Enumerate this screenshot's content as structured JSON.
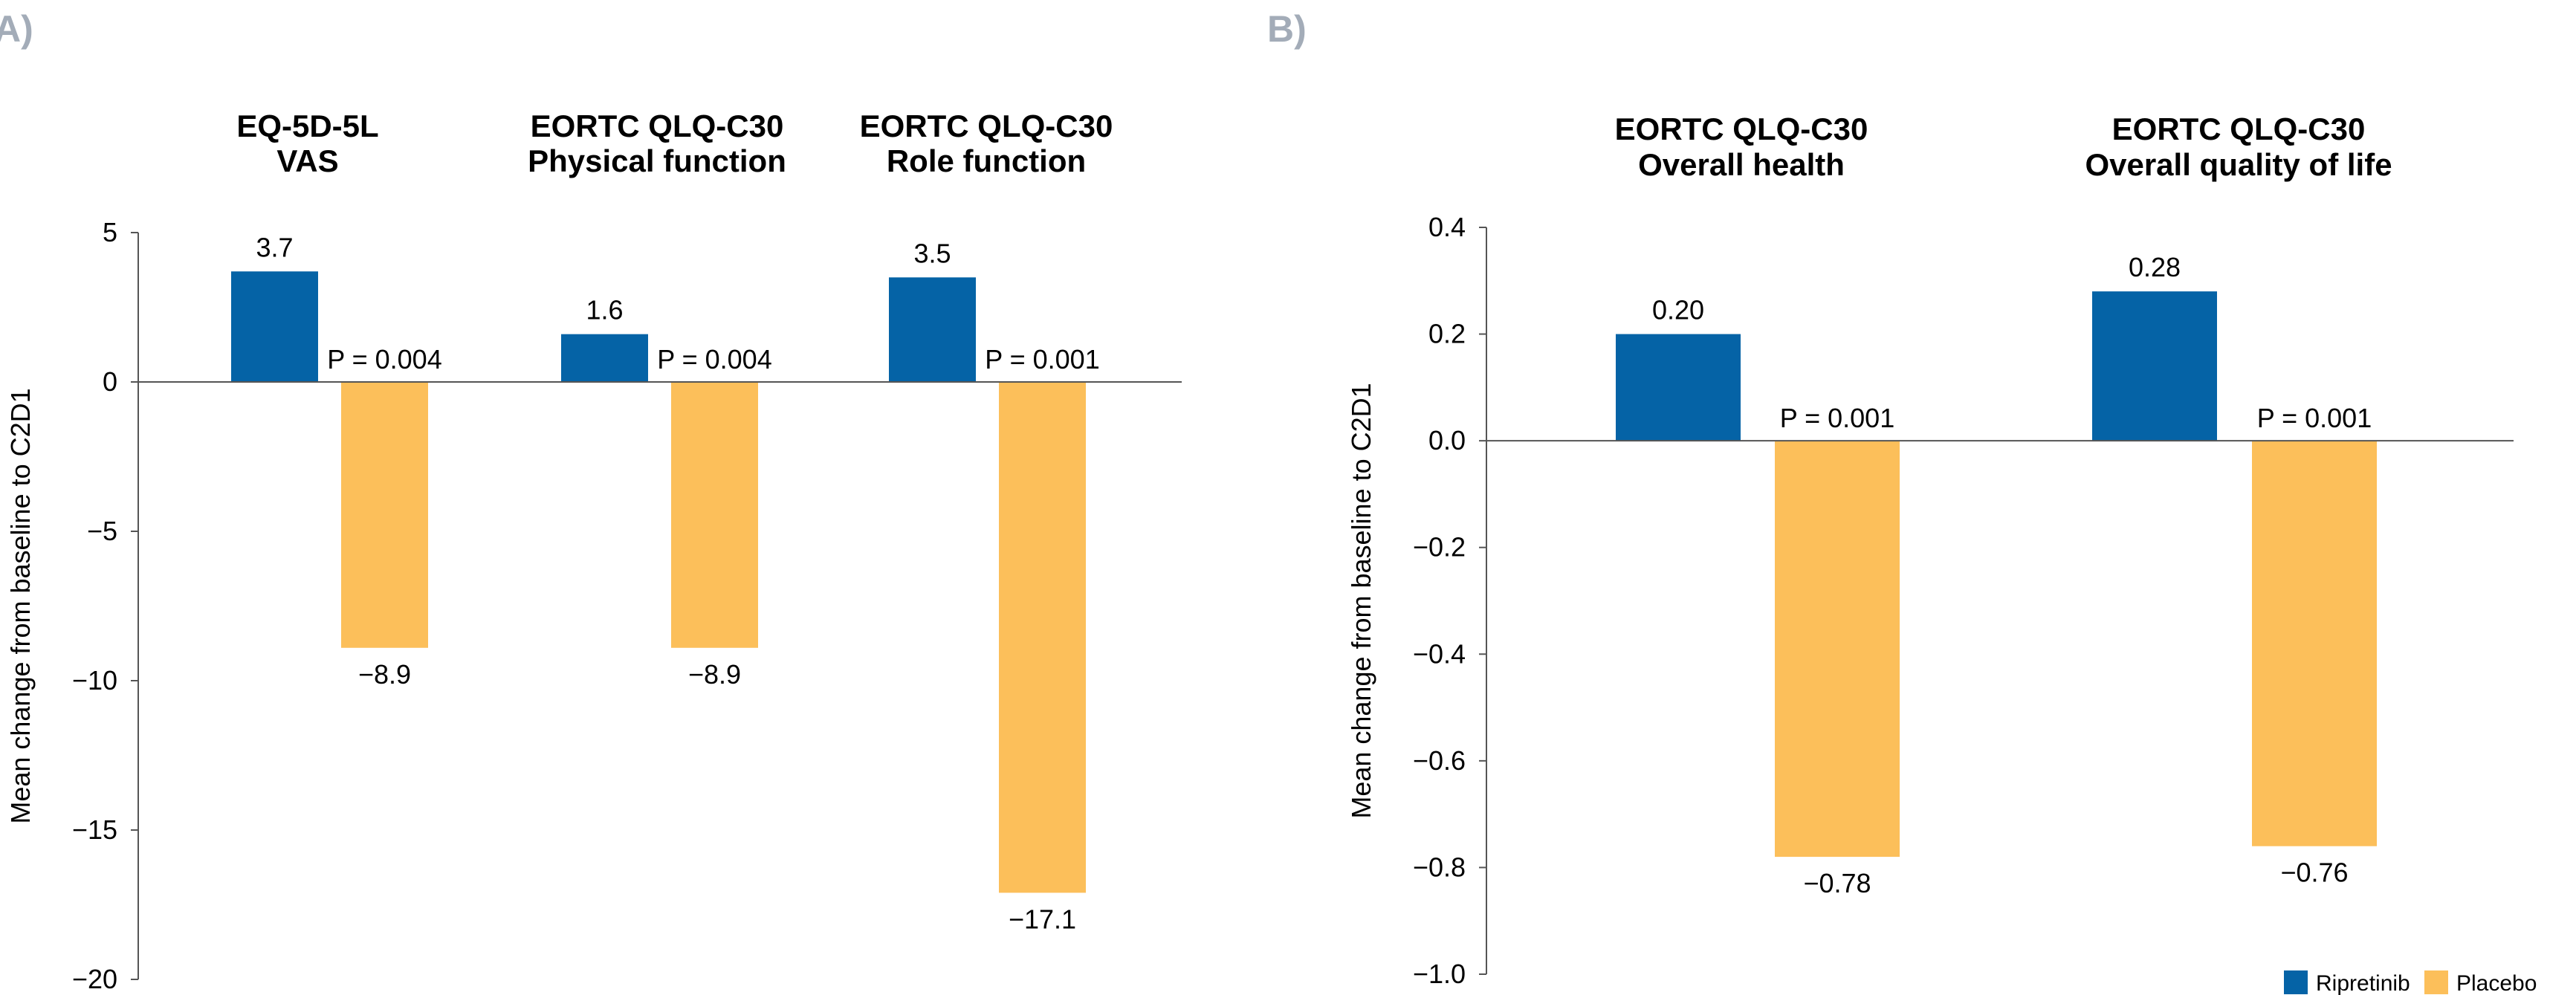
{
  "colors": {
    "ripretinib": "#0563a6",
    "placebo": "#fcbf5a",
    "axis": "#555555",
    "panel_label": "#a3acb8"
  },
  "legend": [
    {
      "name": "Ripretinib",
      "color": "#0563a6"
    },
    {
      "name": "Placebo",
      "color": "#fcbf5a"
    }
  ],
  "chart_data": [
    {
      "panel_label": "A)",
      "type": "bar",
      "ylabel": "Mean change from baseline to C2D1",
      "ylim": [
        -20,
        5
      ],
      "yticks": [
        5,
        0,
        -5,
        -10,
        -15,
        -20
      ],
      "yticklabels": [
        "5",
        "0",
        "−5",
        "−10",
        "−15",
        "−20"
      ],
      "groups": [
        {
          "title_lines": [
            "EQ-5D-5L",
            "VAS"
          ],
          "ripretinib": 3.7,
          "placebo": -8.9,
          "ripretinib_label": "3.7",
          "placebo_label": "−8.9",
          "p_value": "P = 0.004"
        },
        {
          "title_lines": [
            "EORTC QLQ-C30",
            "Physical function"
          ],
          "ripretinib": 1.6,
          "placebo": -8.9,
          "ripretinib_label": "1.6",
          "placebo_label": "−8.9",
          "p_value": "P = 0.004"
        },
        {
          "title_lines": [
            "EORTC QLQ-C30",
            "Role function"
          ],
          "ripretinib": 3.5,
          "placebo": -17.1,
          "ripretinib_label": "3.5",
          "placebo_label": "−17.1",
          "p_value": "P = 0.001"
        }
      ]
    },
    {
      "panel_label": "B)",
      "type": "bar",
      "ylabel": "Mean change from baseline to C2D1",
      "ylim": [
        -1.0,
        0.4
      ],
      "yticks": [
        0.4,
        0.2,
        0.0,
        -0.2,
        -0.4,
        -0.6,
        -0.8,
        -1.0
      ],
      "yticklabels": [
        "0.4",
        "0.2",
        "0.0",
        "−0.2",
        "−0.4",
        "−0.6",
        "−0.8",
        "−1.0"
      ],
      "groups": [
        {
          "title_lines": [
            "EORTC QLQ-C30",
            "Overall health"
          ],
          "ripretinib": 0.2,
          "placebo": -0.78,
          "ripretinib_label": "0.20",
          "placebo_label": "−0.78",
          "p_value": "P = 0.001"
        },
        {
          "title_lines": [
            "EORTC QLQ-C30",
            "Overall quality of life"
          ],
          "ripretinib": 0.28,
          "placebo": -0.76,
          "ripretinib_label": "0.28",
          "placebo_label": "−0.76",
          "p_value": "P = 0.001"
        }
      ]
    }
  ]
}
